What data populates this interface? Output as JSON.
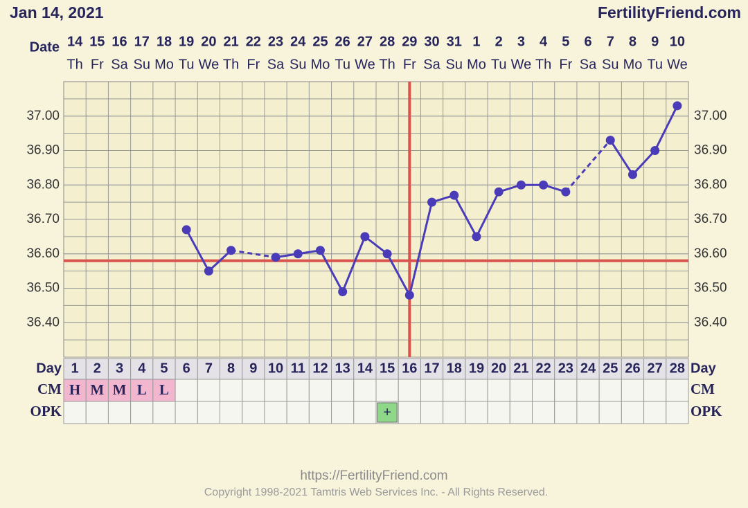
{
  "chart_data": {
    "type": "line",
    "title": "Jan 14, 2021",
    "site": "FertilityFriend.com",
    "date_label": "Date",
    "day_label": "Day",
    "cm_label": "CM",
    "opk_label": "OPK",
    "dates": [
      14,
      15,
      16,
      17,
      18,
      19,
      20,
      21,
      22,
      23,
      24,
      25,
      26,
      27,
      28,
      29,
      30,
      31,
      1,
      2,
      3,
      4,
      5,
      6,
      7,
      8,
      9,
      10
    ],
    "weekdays": [
      "Th",
      "Fr",
      "Sa",
      "Su",
      "Mo",
      "Tu",
      "We",
      "Th",
      "Fr",
      "Sa",
      "Su",
      "Mo",
      "Tu",
      "We",
      "Th",
      "Fr",
      "Sa",
      "Su",
      "Mo",
      "Tu",
      "We",
      "Th",
      "Fr",
      "Sa",
      "Su",
      "Mo",
      "Tu",
      "We"
    ],
    "categories": [
      1,
      2,
      3,
      4,
      5,
      6,
      7,
      8,
      9,
      10,
      11,
      12,
      13,
      14,
      15,
      16,
      17,
      18,
      19,
      20,
      21,
      22,
      23,
      24,
      25,
      26,
      27,
      28
    ],
    "values": [
      null,
      null,
      null,
      null,
      null,
      36.67,
      36.55,
      36.61,
      null,
      36.59,
      36.6,
      36.61,
      36.49,
      36.65,
      36.6,
      36.48,
      36.75,
      36.77,
      36.65,
      36.78,
      36.8,
      36.8,
      36.78,
      null,
      36.93,
      36.83,
      36.9,
      37.03
    ],
    "color": "#4a3bb8",
    "cm": [
      "H",
      "M",
      "M",
      "L",
      "L",
      null,
      null,
      null,
      null,
      null,
      null,
      null,
      null,
      null,
      null,
      null,
      null,
      null,
      null,
      null,
      null,
      null,
      null,
      null,
      null,
      null,
      null,
      null
    ],
    "opk": [
      null,
      null,
      null,
      null,
      null,
      null,
      null,
      null,
      null,
      null,
      null,
      null,
      null,
      null,
      "+",
      null,
      null,
      null,
      null,
      null,
      null,
      null,
      null,
      null,
      null,
      null,
      null,
      null
    ],
    "coverline": 36.58,
    "ovulation_day": 16,
    "line_color": "#d9534f",
    "ylim": [
      36.3,
      37.1
    ],
    "yticks": [
      {
        "value": 36.4,
        "label": "36.40"
      },
      {
        "value": 36.5,
        "label": "36.50"
      },
      {
        "value": 36.6,
        "label": "36.60"
      },
      {
        "value": 36.7,
        "label": "36.70"
      },
      {
        "value": 36.8,
        "label": "36.80"
      },
      {
        "value": 36.9,
        "label": "36.90"
      },
      {
        "value": 37,
        "label": "37.00"
      }
    ],
    "grid": true,
    "url": "https://FertilityFriend.com",
    "copyright": "Copyright 1998-2021 Tamtris Web Services Inc. - All Rights Reserved."
  }
}
